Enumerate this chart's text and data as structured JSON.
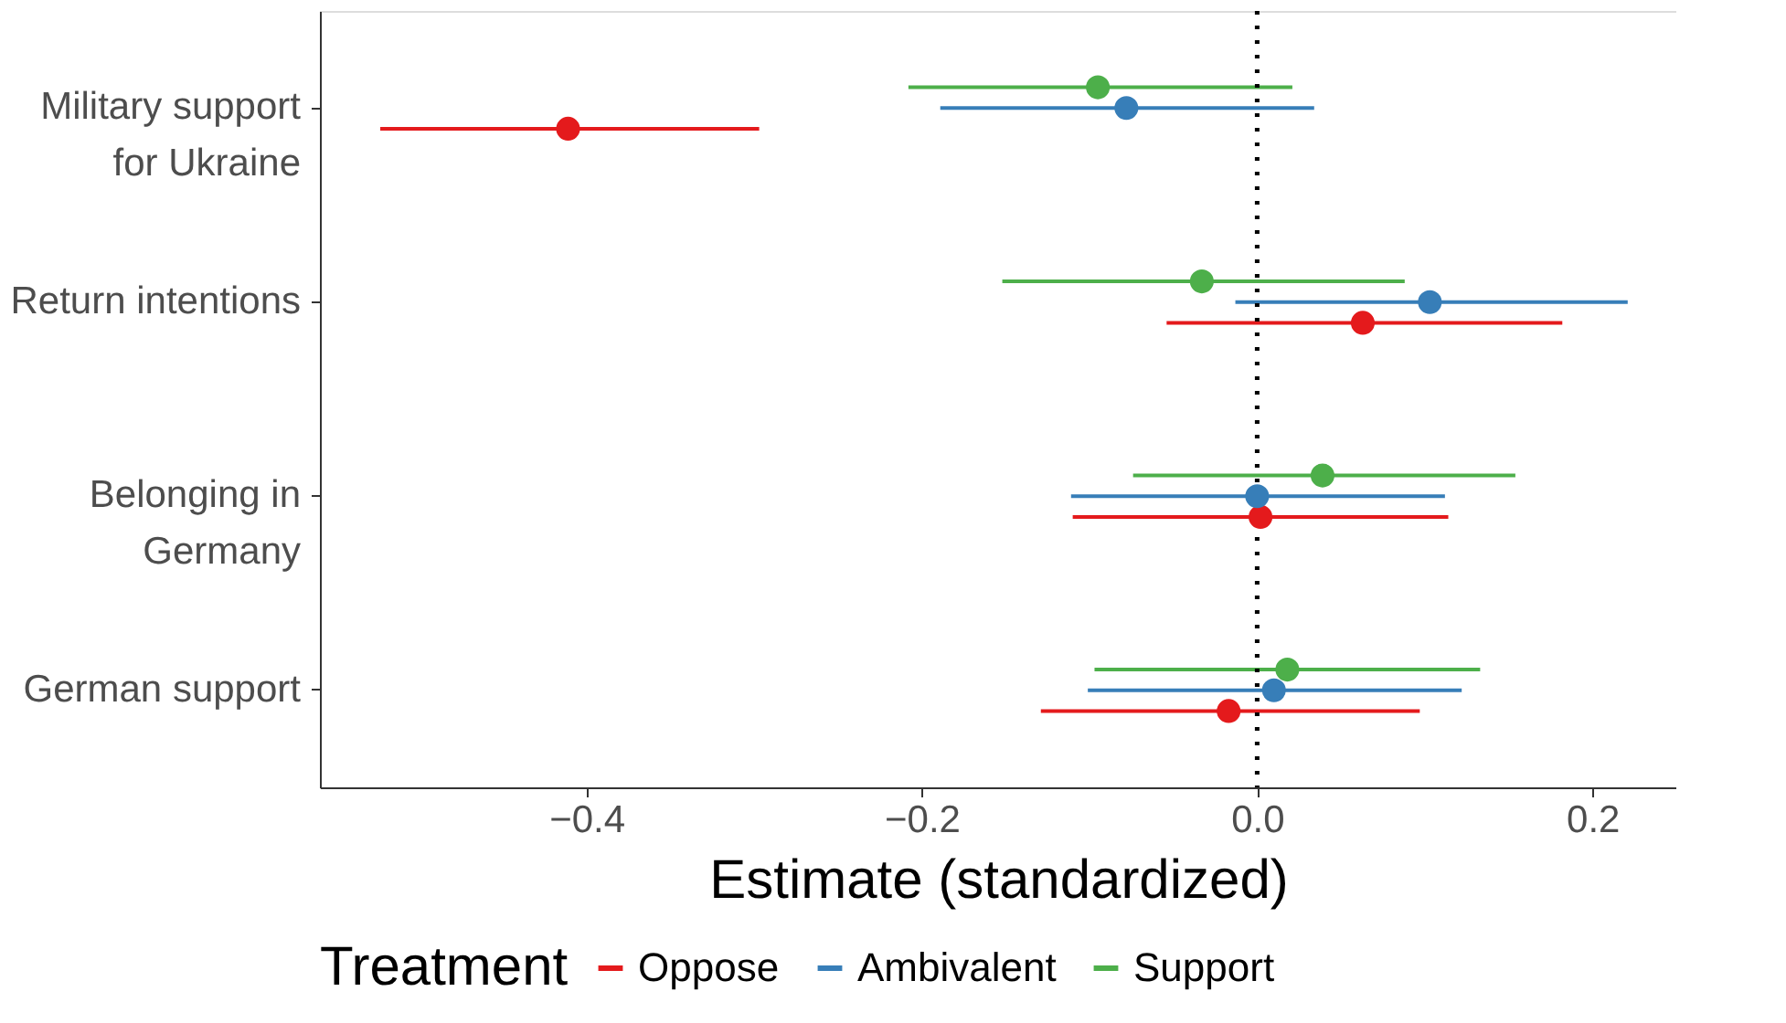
{
  "chart_data": {
    "type": "scatter",
    "orientation": "horizontal",
    "xlabel": "Estimate (standardized)",
    "legend_title": "Treatment",
    "legend": "bottom",
    "grid": false,
    "marker": "circle",
    "categories": [
      "Military support\nfor Ukraine",
      "Return intentions",
      "Belonging in\nGermany",
      "German support"
    ],
    "xlim": [
      -0.559,
      0.25
    ],
    "xticks": [
      {
        "value": -0.4,
        "label": "−0.4"
      },
      {
        "value": -0.2,
        "label": "−0.2"
      },
      {
        "value": 0,
        "label": "0.0"
      },
      0.2
    ],
    "ref_lines": [
      {
        "axis": "x",
        "value": 0,
        "color": "#000000",
        "line_style": "dotted"
      }
    ],
    "series": [
      {
        "name": "Oppose",
        "color": "#e41a1c",
        "values": [
          -0.411,
          0.063,
          0.002,
          -0.017
        ],
        "errors": [
          [
            -0.523,
            -0.297
          ],
          [
            -0.054,
            0.182
          ],
          [
            -0.11,
            0.114
          ],
          [
            -0.129,
            0.097
          ]
        ]
      },
      {
        "name": "Ambivalent",
        "color": "#377eb8",
        "values": [
          -0.078,
          0.103,
          0.0,
          0.01
        ],
        "errors": [
          [
            -0.189,
            0.034
          ],
          [
            -0.013,
            0.221
          ],
          [
            -0.111,
            0.112
          ],
          [
            -0.101,
            0.122
          ]
        ]
      },
      {
        "name": "Support",
        "color": "#4daf4a",
        "values": [
          -0.095,
          -0.033,
          0.039,
          0.018
        ],
        "errors": [
          [
            -0.208,
            0.021
          ],
          [
            -0.152,
            0.088
          ],
          [
            -0.074,
            0.154
          ],
          [
            -0.097,
            0.133
          ]
        ]
      }
    ]
  }
}
